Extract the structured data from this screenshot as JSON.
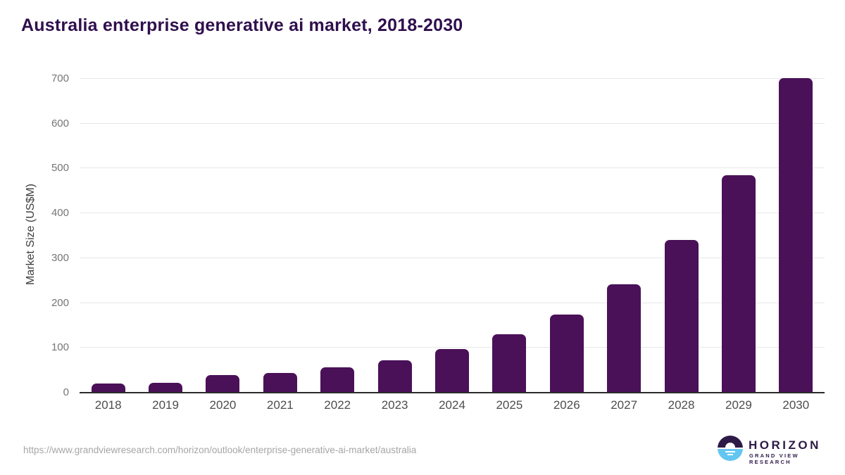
{
  "title": "Australia enterprise generative ai market, 2018-2030",
  "colors": {
    "bar": "#4a1158",
    "title_text": "#2f0f4d",
    "gridline": "#e7e7e7",
    "axis_line": "#2b2b2b",
    "y_tick_text": "#757575",
    "x_tick_text": "#4d4d4d",
    "axis_title_text": "#3d3d3d",
    "url_text": "#a6a6a6",
    "logo_purple": "#2e1a47",
    "logo_blue": "#63c6f0"
  },
  "chart_data": {
    "type": "bar",
    "title": "Australia enterprise generative ai market, 2018-2030",
    "categories": [
      "2018",
      "2019",
      "2020",
      "2021",
      "2022",
      "2023",
      "2024",
      "2025",
      "2026",
      "2027",
      "2028",
      "2029",
      "2030"
    ],
    "values": [
      20,
      22,
      40,
      44,
      56,
      73,
      97,
      130,
      175,
      242,
      340,
      485,
      701
    ],
    "xlabel": "",
    "ylabel": "Market Size (US$M)",
    "ylim": [
      0,
      700
    ],
    "yticks": [
      0,
      100,
      200,
      300,
      400,
      500,
      600,
      700
    ],
    "grid": "horizontal",
    "legend": "none",
    "bar_color": "#4a1158"
  },
  "footer": {
    "source_url": "https://www.grandviewresearch.com/horizon/outlook/enterprise-generative-ai-market/australia",
    "logo": {
      "name": "HORIZON",
      "subtitle": "GRAND VIEW RESEARCH",
      "icon": "horizon-sun-over-water-icon"
    }
  }
}
